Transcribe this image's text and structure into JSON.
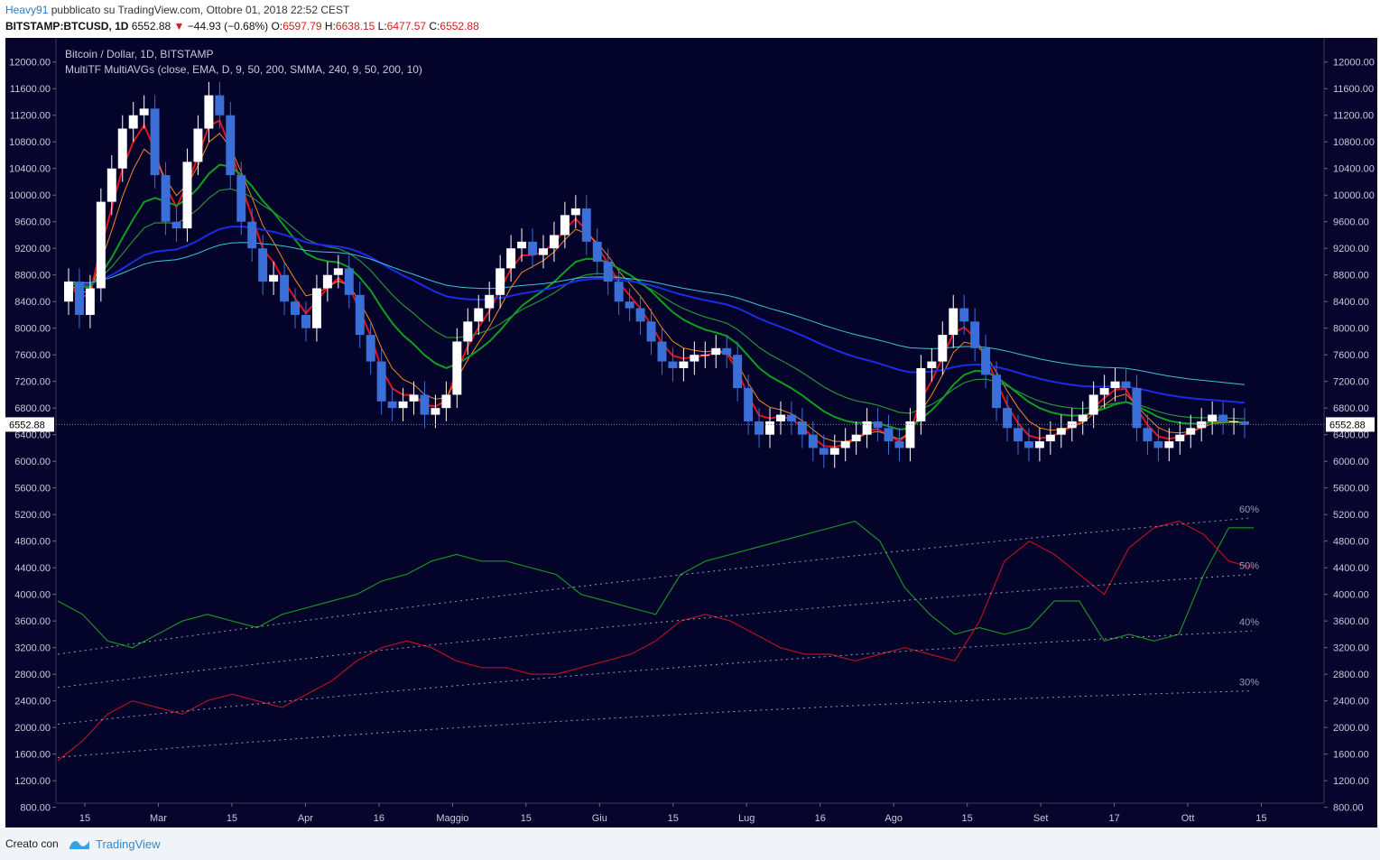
{
  "header": {
    "user": "Heavy91",
    "published": "pubblicato su TradingView.com, Ottobre 01, 2018 22:52 CEST",
    "symbol": "BITSTAMP:BTCUSD, 1D",
    "price": "6552.88",
    "change": "−44.93 (−0.68%)",
    "o_label": "O:",
    "o_value": "6597.79",
    "h_label": "H:",
    "h_value": "6638.15",
    "l_label": "L:",
    "l_value": "6477.57",
    "c_label": "C:",
    "c_value": "6552.88"
  },
  "legend": {
    "title": "Bitcoin / Dollar, 1D, BITSTAMP",
    "indicator": "MultiTF MultiAVGs (close, EMA, D, 9, 50, 200, SMMA, 240, 9, 50, 200, 10)"
  },
  "footer": {
    "created_with": "Creato con",
    "brand": "TradingView"
  },
  "colors": {
    "background": "#07052e",
    "up_candle": "#ffffff",
    "down_candle": "#3b6fd8",
    "ema9": "#e8111d",
    "ema50": "#0f9e1e",
    "ema200": "#1b2be6",
    "smma_fast": "#f6861f",
    "smma_mid": "#2a8f35",
    "smma_slow": "#38c6d6",
    "osc_green": "#1a8f23",
    "osc_red": "#b1141d"
  },
  "chart_data": {
    "type": "candlestick",
    "y_axis_ticks": [
      12000,
      11600,
      11200,
      10800,
      10400,
      10000,
      9600,
      9200,
      8800,
      8400,
      8000,
      7600,
      7200,
      6800,
      6400,
      6000,
      5600,
      5200,
      4800,
      4400,
      4000,
      3600,
      3200,
      2800,
      2400,
      2000,
      1600,
      1200,
      800
    ],
    "x_axis_labels": [
      "15",
      "Mar",
      "15",
      "Apr",
      "16",
      "Maggio",
      "15",
      "Giu",
      "15",
      "Lug",
      "16",
      "Ago",
      "15",
      "Set",
      "17",
      "Ott",
      "15"
    ],
    "last_price": "6552.88",
    "percent_bands": [
      "60%",
      "50%",
      "40%",
      "30%"
    ],
    "close": [
      8700,
      8200,
      8600,
      9900,
      10400,
      11000,
      11200,
      11300,
      10300,
      9600,
      9500,
      10500,
      11000,
      11500,
      11200,
      10300,
      9600,
      9200,
      8700,
      8800,
      8400,
      8200,
      8000,
      8600,
      8800,
      8900,
      8500,
      7900,
      7500,
      6900,
      6800,
      6900,
      7000,
      6700,
      6800,
      7000,
      7800,
      8100,
      8300,
      8500,
      8900,
      9200,
      9300,
      9100,
      9200,
      9400,
      9700,
      9800,
      9300,
      9000,
      8700,
      8400,
      8300,
      8100,
      7800,
      7500,
      7400,
      7500,
      7600,
      7600,
      7700,
      7600,
      7100,
      6600,
      6400,
      6600,
      6700,
      6600,
      6400,
      6200,
      6100,
      6200,
      6300,
      6400,
      6600,
      6500,
      6300,
      6200,
      6600,
      7400,
      7500,
      7900,
      8300,
      8100,
      7700,
      7300,
      6800,
      6500,
      6300,
      6200,
      6300,
      6400,
      6500,
      6600,
      6700,
      7000,
      7100,
      7200,
      7100,
      6500,
      6300,
      6200,
      6300,
      6400,
      6500,
      6600,
      6700,
      6600,
      6600,
      6550
    ],
    "open": [
      8400,
      8700,
      8200,
      8600,
      9900,
      10400,
      11000,
      11200,
      11300,
      10300,
      9600,
      9500,
      10500,
      11000,
      11500,
      11200,
      10300,
      9600,
      9200,
      8700,
      8800,
      8400,
      8200,
      8000,
      8600,
      8800,
      8900,
      8500,
      7900,
      7500,
      6900,
      6800,
      6900,
      7000,
      6700,
      6800,
      7000,
      7800,
      8100,
      8300,
      8500,
      8900,
      9200,
      9300,
      9100,
      9200,
      9400,
      9700,
      9800,
      9300,
      9000,
      8700,
      8400,
      8300,
      8100,
      7800,
      7500,
      7400,
      7500,
      7600,
      7600,
      7700,
      7600,
      7100,
      6600,
      6400,
      6600,
      6700,
      6600,
      6400,
      6200,
      6100,
      6200,
      6300,
      6400,
      6600,
      6500,
      6300,
      6200,
      6600,
      7400,
      7500,
      7900,
      8300,
      8100,
      7700,
      7300,
      6800,
      6500,
      6300,
      6200,
      6300,
      6400,
      6500,
      6600,
      6700,
      7000,
      7100,
      7200,
      7100,
      6500,
      6300,
      6200,
      6300,
      6400,
      6500,
      6600,
      6700,
      6600,
      6600
    ],
    "osc_green": [
      3900,
      3700,
      3300,
      3200,
      3400,
      3600,
      3700,
      3600,
      3500,
      3700,
      3800,
      3900,
      4000,
      4200,
      4300,
      4500,
      4600,
      4500,
      4500,
      4400,
      4300,
      4000,
      3900,
      3800,
      3700,
      4300,
      4500,
      4600,
      4700,
      4800,
      4900,
      5000,
      5100,
      4800,
      4100,
      3700,
      3400,
      3500,
      3400,
      3500,
      3900,
      3900,
      3300,
      3400,
      3300,
      3400,
      4300,
      5000,
      5000
    ],
    "osc_red": [
      1500,
      1800,
      2200,
      2400,
      2300,
      2200,
      2400,
      2500,
      2400,
      2300,
      2500,
      2700,
      3000,
      3200,
      3300,
      3200,
      3000,
      2900,
      2900,
      2800,
      2800,
      2900,
      3000,
      3100,
      3300,
      3600,
      3700,
      3600,
      3400,
      3200,
      3100,
      3100,
      3000,
      3100,
      3200,
      3100,
      3000,
      3600,
      4500,
      4800,
      4600,
      4300,
      4000,
      4700,
      5000,
      5100,
      4900,
      4500,
      4400
    ]
  }
}
